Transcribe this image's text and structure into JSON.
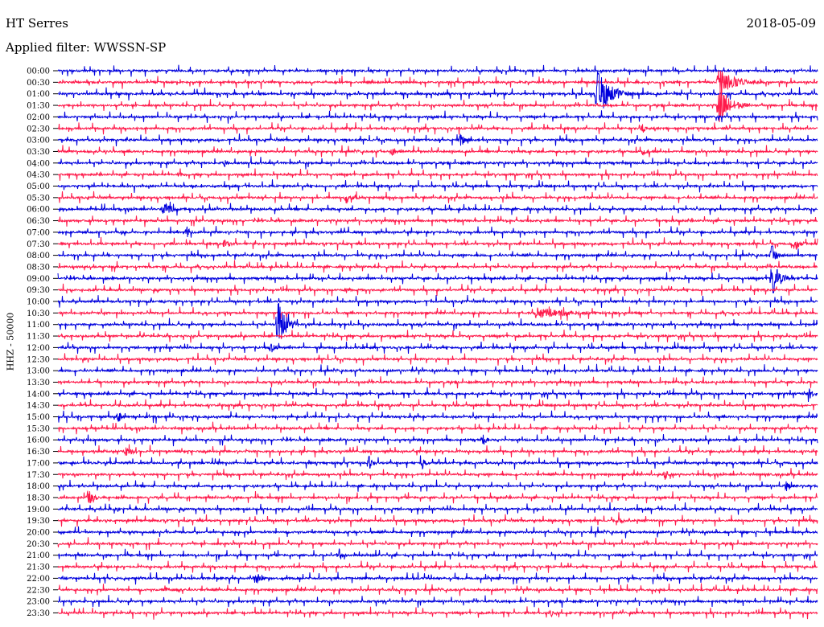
{
  "header": {
    "station": "HT Serres",
    "date": "2018-05-09",
    "filter_text": "Applied filter: WWSSN-SP"
  },
  "chart_data": {
    "type": "helicorder",
    "title": "HT Serres",
    "date": "2018-05-09",
    "filter": "WWSSN-SP",
    "ylabel": "HHZ - 50000",
    "colors": [
      "#0000dd",
      "#ff1a4b"
    ],
    "rows": [
      {
        "time": "00:00",
        "events": []
      },
      {
        "time": "00:30",
        "events": [
          {
            "pos": 0.87,
            "amp": 18,
            "dur": 0.06
          }
        ]
      },
      {
        "time": "01:00",
        "events": [
          {
            "pos": 0.71,
            "amp": 30,
            "dur": 0.05
          }
        ]
      },
      {
        "time": "01:30",
        "events": [
          {
            "pos": 0.87,
            "amp": 28,
            "dur": 0.04
          }
        ]
      },
      {
        "time": "02:00",
        "events": []
      },
      {
        "time": "02:30",
        "events": [
          {
            "pos": 0.77,
            "amp": 6,
            "dur": 0.01
          }
        ]
      },
      {
        "time": "03:00",
        "events": [
          {
            "pos": 0.53,
            "amp": 9,
            "dur": 0.02
          }
        ]
      },
      {
        "time": "03:30",
        "events": [
          {
            "pos": 0.44,
            "amp": 6,
            "dur": 0.01
          },
          {
            "pos": 0.77,
            "amp": 6,
            "dur": 0.02
          }
        ]
      },
      {
        "time": "04:00",
        "events": [
          {
            "pos": 0.22,
            "amp": 5,
            "dur": 0.01
          }
        ]
      },
      {
        "time": "04:30",
        "events": [
          {
            "pos": 0.16,
            "amp": 6,
            "dur": 0.01
          }
        ]
      },
      {
        "time": "05:00",
        "events": []
      },
      {
        "time": "05:30",
        "events": [
          {
            "pos": 0.38,
            "amp": 8,
            "dur": 0.03
          }
        ]
      },
      {
        "time": "06:00",
        "events": [
          {
            "pos": 0.14,
            "amp": 12,
            "dur": 0.02
          }
        ]
      },
      {
        "time": "06:30",
        "events": []
      },
      {
        "time": "07:00",
        "events": [
          {
            "pos": 0.17,
            "amp": 7,
            "dur": 0.01
          }
        ]
      },
      {
        "time": "07:30",
        "events": [
          {
            "pos": 0.22,
            "amp": 7,
            "dur": 0.02
          },
          {
            "pos": 0.97,
            "amp": 10,
            "dur": 0.02
          }
        ]
      },
      {
        "time": "08:00",
        "events": [
          {
            "pos": 0.94,
            "amp": 14,
            "dur": 0.02
          }
        ]
      },
      {
        "time": "08:30",
        "events": []
      },
      {
        "time": "09:00",
        "events": [
          {
            "pos": 0.94,
            "amp": 22,
            "dur": 0.03
          }
        ]
      },
      {
        "time": "09:30",
        "events": [
          {
            "pos": 0.38,
            "amp": 6,
            "dur": 0.01
          }
        ]
      },
      {
        "time": "10:00",
        "events": []
      },
      {
        "time": "10:30",
        "events": [
          {
            "pos": 0.63,
            "amp": 7,
            "dur": 0.12
          }
        ]
      },
      {
        "time": "11:00",
        "events": [
          {
            "pos": 0.29,
            "amp": 30,
            "dur": 0.03
          }
        ]
      },
      {
        "time": "11:30",
        "events": []
      },
      {
        "time": "12:00",
        "events": [
          {
            "pos": 0.28,
            "amp": 7,
            "dur": 0.02
          }
        ]
      },
      {
        "time": "12:30",
        "events": []
      },
      {
        "time": "13:00",
        "events": []
      },
      {
        "time": "13:30",
        "events": []
      },
      {
        "time": "14:00",
        "events": [
          {
            "pos": 0.99,
            "amp": 9,
            "dur": 0.01
          }
        ]
      },
      {
        "time": "14:30",
        "events": []
      },
      {
        "time": "15:00",
        "events": [
          {
            "pos": 0.08,
            "amp": 10,
            "dur": 0.01
          }
        ]
      },
      {
        "time": "15:30",
        "events": []
      },
      {
        "time": "16:00",
        "events": [
          {
            "pos": 0.56,
            "amp": 10,
            "dur": 0.01
          }
        ]
      },
      {
        "time": "16:30",
        "events": [
          {
            "pos": 0.09,
            "amp": 7,
            "dur": 0.02
          }
        ]
      },
      {
        "time": "17:00",
        "events": [
          {
            "pos": 0.41,
            "amp": 12,
            "dur": 0.01
          },
          {
            "pos": 0.48,
            "amp": 8,
            "dur": 0.01
          }
        ]
      },
      {
        "time": "17:30",
        "events": [
          {
            "pos": 0.8,
            "amp": 9,
            "dur": 0.01
          }
        ]
      },
      {
        "time": "18:00",
        "events": [
          {
            "pos": 0.96,
            "amp": 9,
            "dur": 0.01
          }
        ]
      },
      {
        "time": "18:30",
        "events": [
          {
            "pos": 0.04,
            "amp": 10,
            "dur": 0.02
          }
        ]
      },
      {
        "time": "19:00",
        "events": []
      },
      {
        "time": "19:30",
        "events": [
          {
            "pos": 0.74,
            "amp": 6,
            "dur": 0.01
          }
        ]
      },
      {
        "time": "20:00",
        "events": []
      },
      {
        "time": "20:30",
        "events": []
      },
      {
        "time": "21:00",
        "events": [
          {
            "pos": 0.37,
            "amp": 10,
            "dur": 0.01
          }
        ]
      },
      {
        "time": "21:30",
        "events": []
      },
      {
        "time": "22:00",
        "events": [
          {
            "pos": 0.26,
            "amp": 9,
            "dur": 0.02
          }
        ]
      },
      {
        "time": "22:30",
        "events": [
          {
            "pos": 0.14,
            "amp": 4,
            "dur": 0.02
          }
        ]
      },
      {
        "time": "23:00",
        "events": []
      },
      {
        "time": "23:30",
        "events": [
          {
            "pos": 0.65,
            "amp": 6,
            "dur": 0.01
          }
        ]
      }
    ]
  }
}
